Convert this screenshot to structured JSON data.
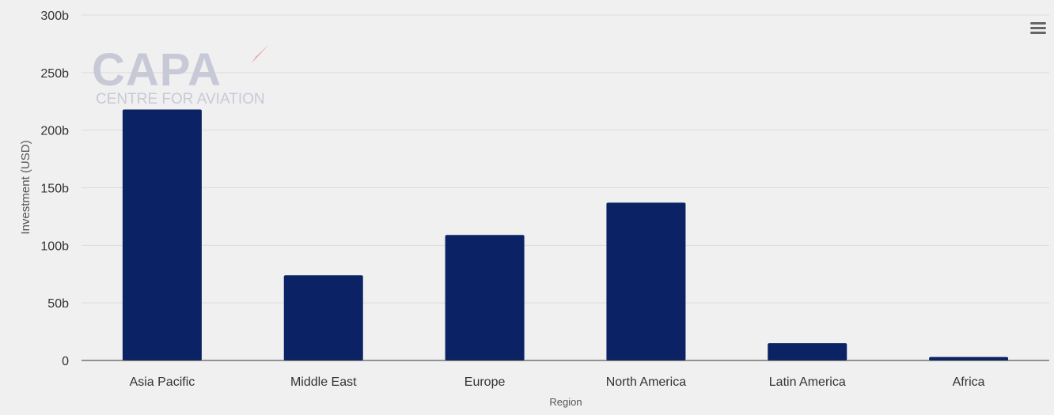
{
  "chart_data": {
    "type": "bar",
    "title": "",
    "xlabel": "Region",
    "ylabel": "Investment (USD)",
    "categories": [
      "Asia Pacific",
      "Middle East",
      "Europe",
      "North America",
      "Latin America",
      "Africa"
    ],
    "values": [
      218,
      74,
      109,
      137,
      15,
      3
    ],
    "ylim": [
      0,
      300
    ],
    "yticks": [
      0,
      50,
      100,
      150,
      200,
      250,
      300
    ],
    "ytick_labels": [
      "0",
      "50b",
      "100b",
      "150b",
      "200b",
      "250b",
      "300b"
    ],
    "grid": true,
    "legend": "none",
    "bar_color": "#0b2265"
  },
  "watermark": {
    "main": "CAPA",
    "sub": "CENTRE FOR AVIATION",
    "color": "#c7cad6",
    "accent_color": "#e8a3a3"
  },
  "toolbar": {
    "menu_icon": "hamburger-menu-icon"
  }
}
